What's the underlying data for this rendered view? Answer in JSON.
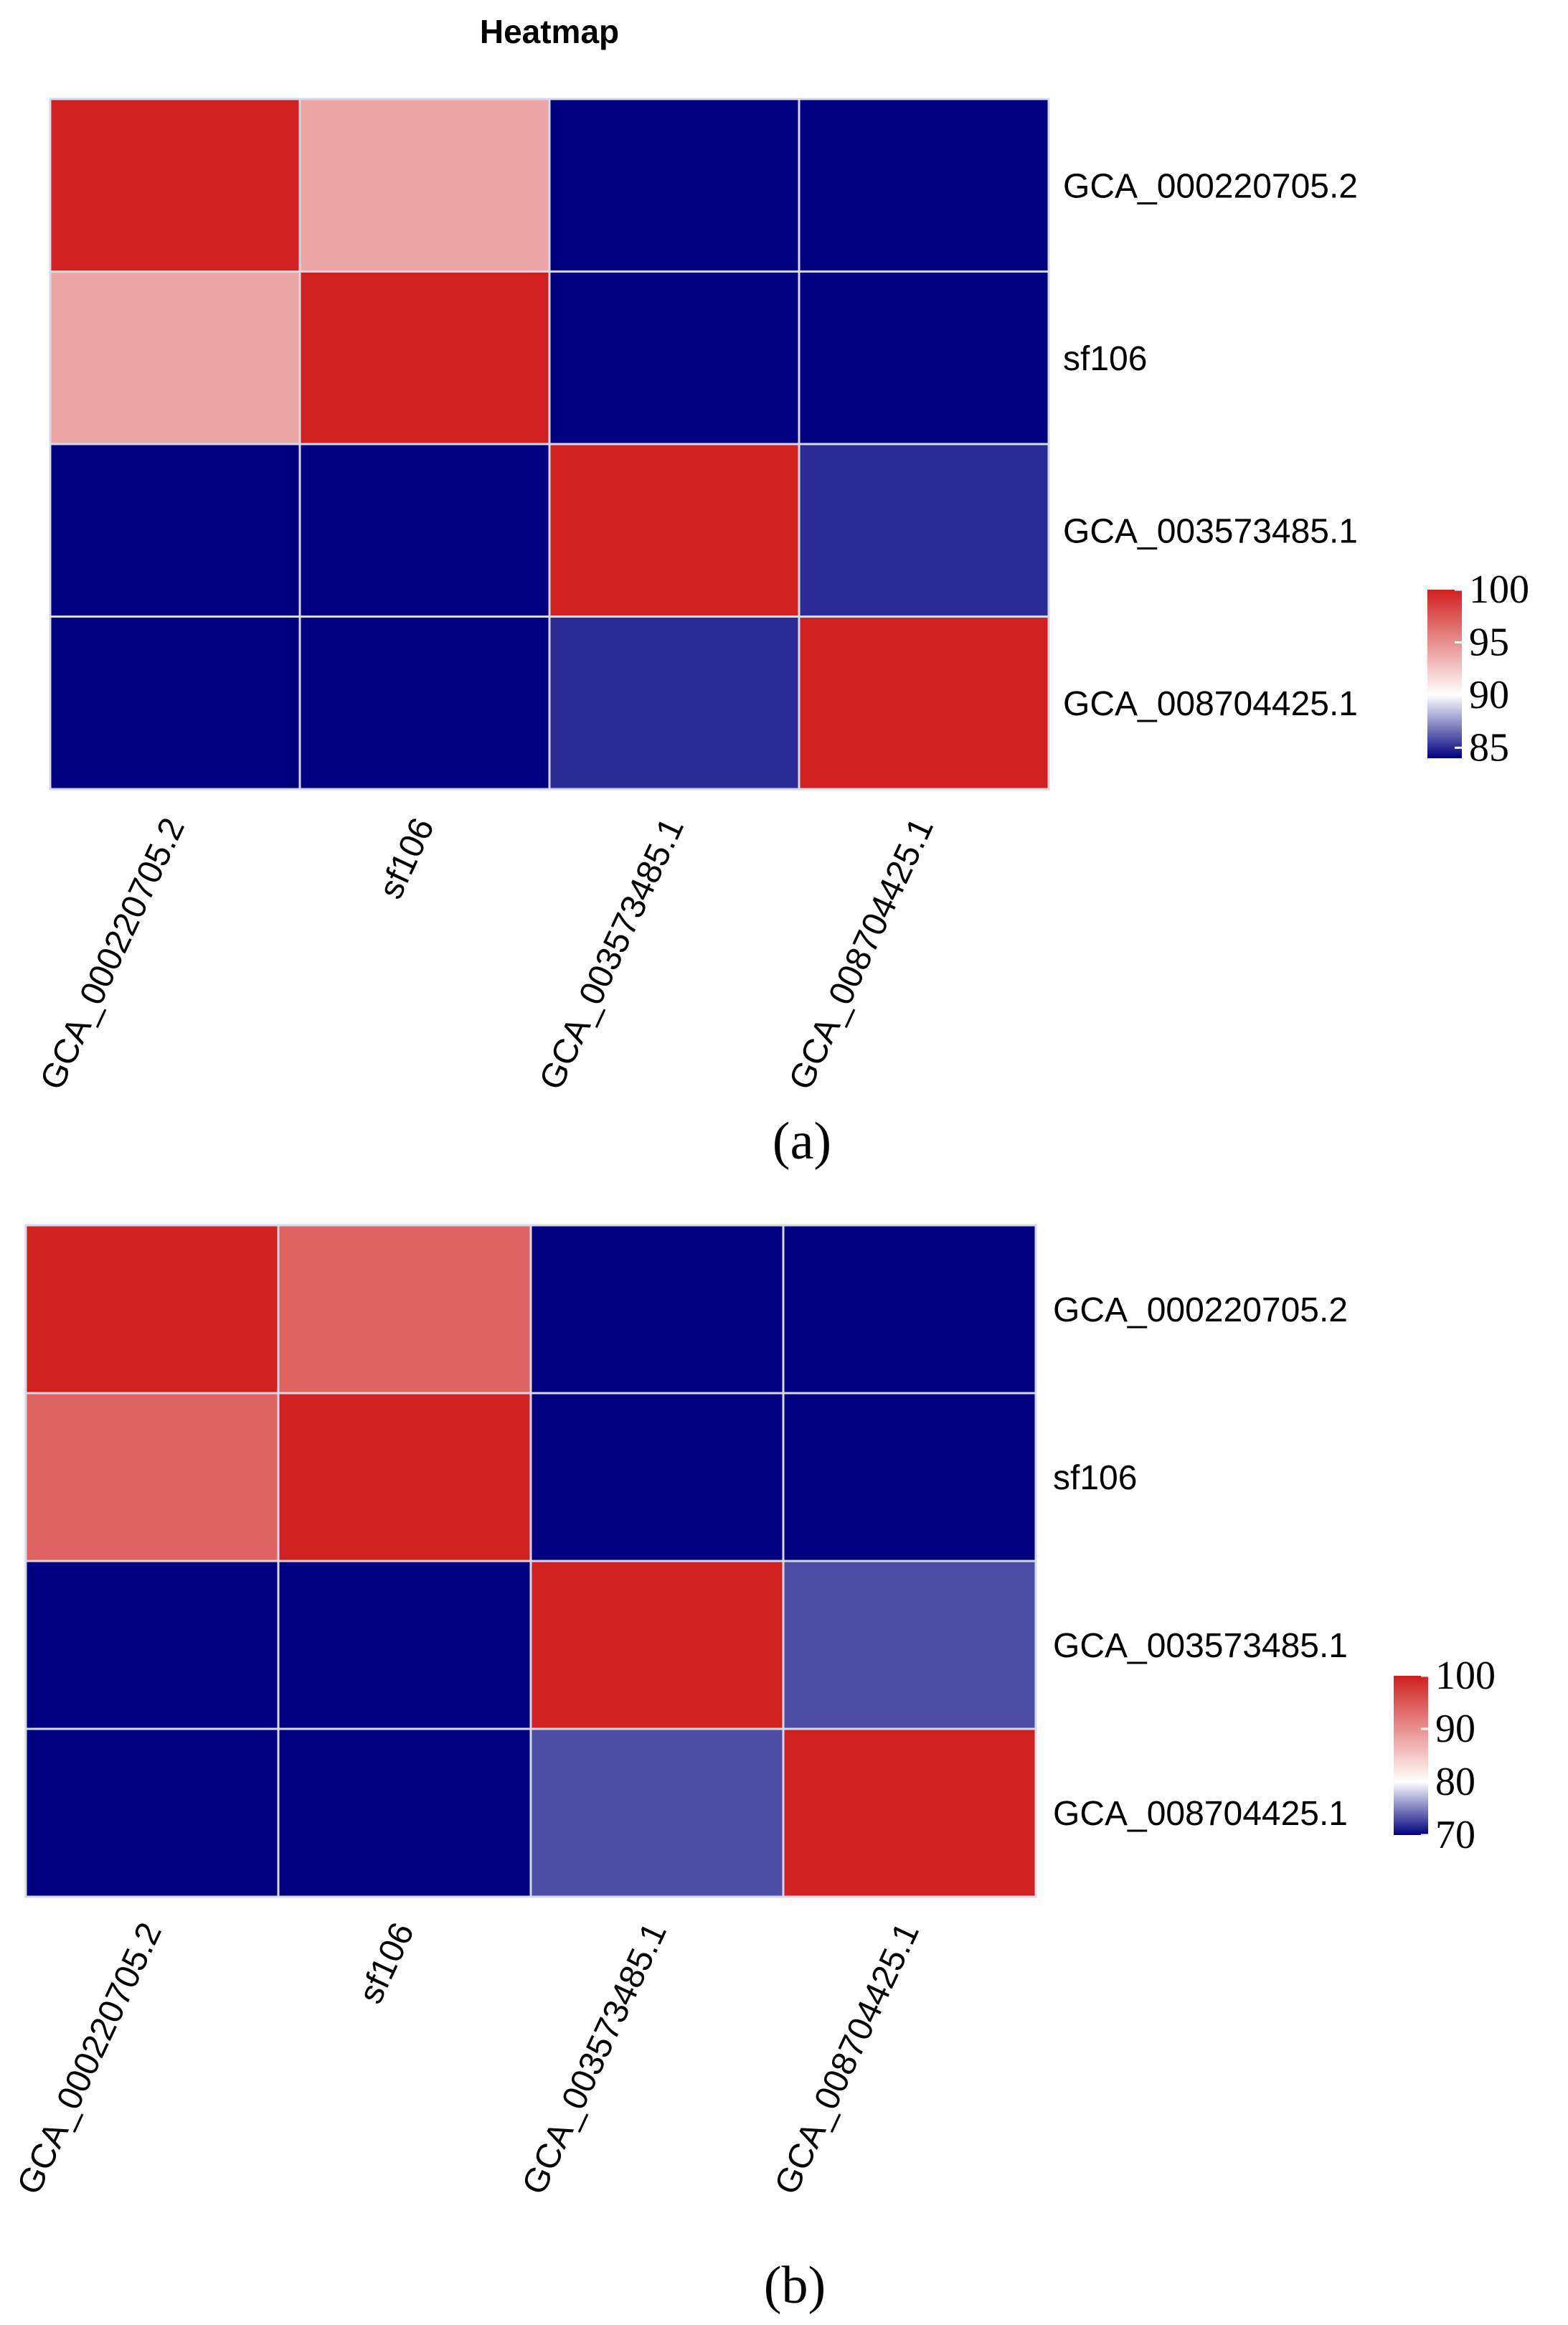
{
  "chart_data": [
    {
      "type": "heatmap",
      "title": "Heatmap",
      "panel_label": "(a)",
      "rows": [
        "GCA_000220705.2",
        "sf106",
        "GCA_003573485.1",
        "GCA_008704425.1"
      ],
      "columns": [
        "GCA_000220705.2",
        "sf106",
        "GCA_003573485.1",
        "GCA_008704425.1"
      ],
      "values": [
        [
          100,
          94,
          84,
          84
        ],
        [
          94,
          100,
          84,
          84
        ],
        [
          84,
          84,
          100,
          85
        ],
        [
          84,
          84,
          85,
          100
        ]
      ],
      "color_scale": {
        "min": 84,
        "mid": 90,
        "max": 100,
        "low": "#000080",
        "midcolor": "#ffffff",
        "high": "#d0201f"
      },
      "legend": {
        "ticks": [
          85,
          90,
          95,
          100
        ],
        "range": [
          84,
          100
        ],
        "placement": "right"
      }
    },
    {
      "type": "heatmap",
      "title": "",
      "panel_label": "(b)",
      "rows": [
        "GCA_000220705.2",
        "sf106",
        "GCA_003573485.1",
        "GCA_008704425.1"
      ],
      "columns": [
        "GCA_000220705.2",
        "sf106",
        "GCA_003573485.1",
        "GCA_008704425.1"
      ],
      "values": [
        [
          100,
          94,
          70,
          70
        ],
        [
          94,
          100,
          70,
          70
        ],
        [
          70,
          70,
          100,
          73
        ],
        [
          70,
          70,
          73,
          100
        ]
      ],
      "color_scale": {
        "min": 70,
        "mid": 80,
        "max": 100,
        "low": "#000080",
        "midcolor": "#ffffff",
        "high": "#d0201f"
      },
      "legend": {
        "ticks": [
          70,
          80,
          90,
          100
        ],
        "range": [
          70,
          100
        ],
        "placement": "right"
      }
    }
  ]
}
